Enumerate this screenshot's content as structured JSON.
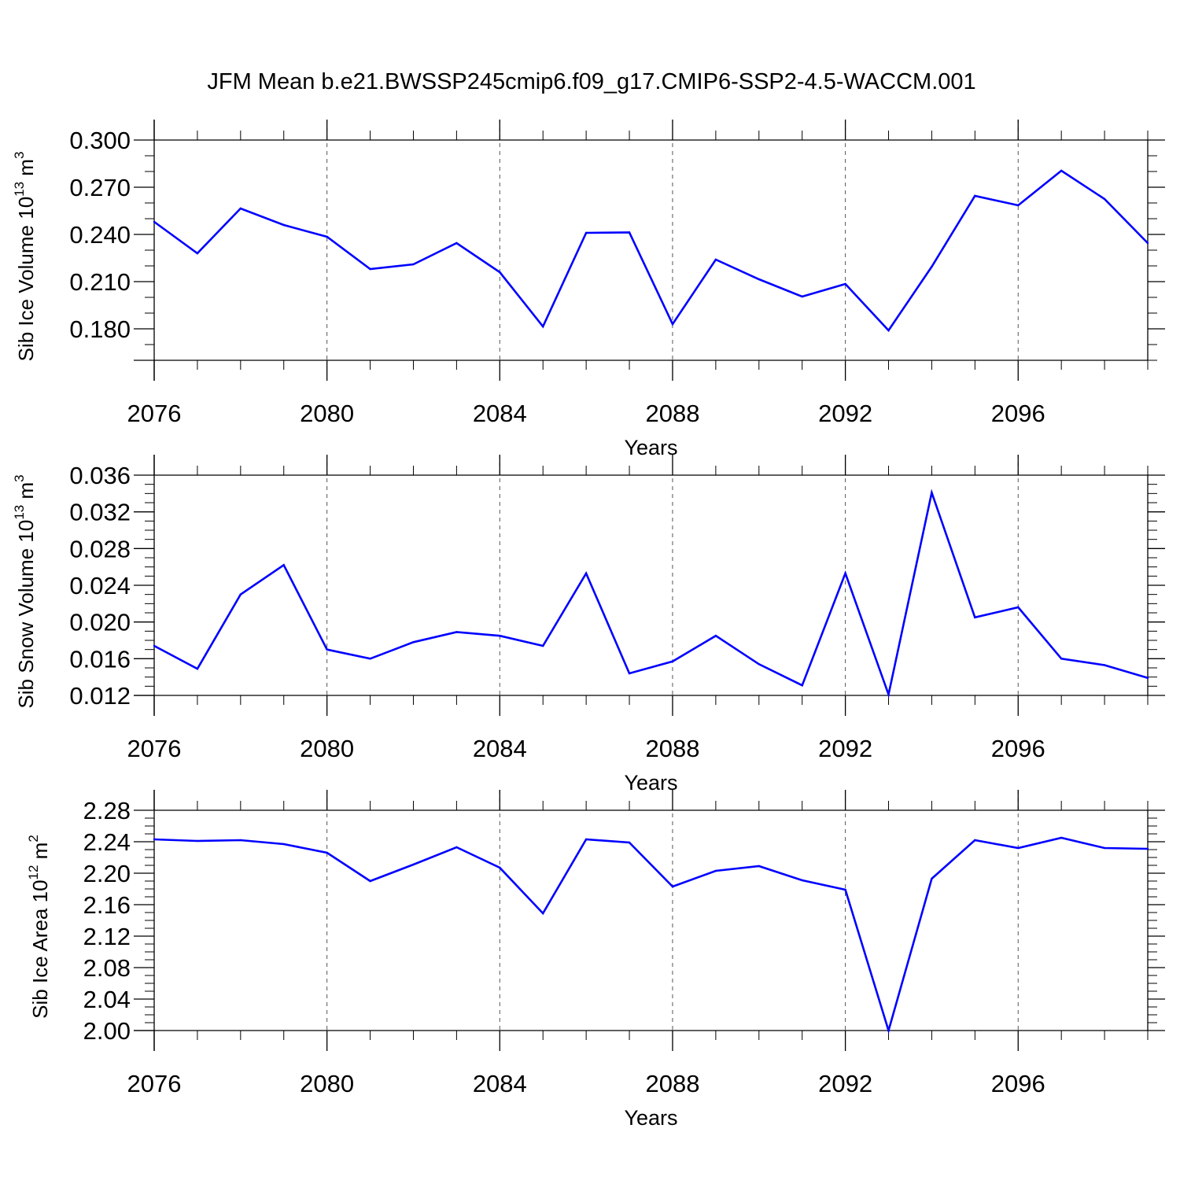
{
  "figure": {
    "title": "JFM Mean b.e21.BWSSP245cmip6.f09_g17.CMIP6-SSP2-4.5-WACCM.001"
  },
  "chart_data": [
    {
      "type": "line",
      "ylabel": "Sib Ice Volume 10",
      "ylabel_sup1": "13",
      "ylabel_mid": " m",
      "ylabel_sup2": "3",
      "xlabel": "Years",
      "xlim": [
        2076,
        2099
      ],
      "ylim": [
        0.16,
        0.3
      ],
      "x_ticks": [
        2076,
        2080,
        2084,
        2088,
        2092,
        2096
      ],
      "x_tick_labels": [
        "2076",
        "2080",
        "2084",
        "2088",
        "2092",
        "2096"
      ],
      "y_ticks": [
        0.18,
        0.21,
        0.24,
        0.27,
        0.3
      ],
      "y_tick_labels": [
        "0.180",
        "0.210",
        "0.240",
        "0.270",
        "0.300"
      ],
      "y_minor_step": 0.01,
      "grid": "vertical dashed at major x ticks",
      "line_color": "#0000ff",
      "x": [
        2076,
        2077,
        2078,
        2079,
        2080,
        2081,
        2082,
        2083,
        2084,
        2085,
        2086,
        2087,
        2088,
        2089,
        2090,
        2091,
        2092,
        2093,
        2094,
        2095,
        2096,
        2097,
        2098,
        2099
      ],
      "y": [
        0.248,
        0.228,
        0.2565,
        0.246,
        0.2385,
        0.218,
        0.221,
        0.2345,
        0.216,
        0.1815,
        0.241,
        0.2413,
        0.183,
        0.224,
        0.2115,
        0.2005,
        0.2085,
        0.179,
        0.2195,
        0.2645,
        0.2585,
        0.2805,
        0.2625,
        0.2345
      ]
    },
    {
      "type": "line",
      "ylabel": "Sib Snow Volume 10",
      "ylabel_sup1": "13",
      "ylabel_mid": " m",
      "ylabel_sup2": "3",
      "xlabel": "Years",
      "xlim": [
        2076,
        2099
      ],
      "ylim": [
        0.012,
        0.036
      ],
      "x_ticks": [
        2076,
        2080,
        2084,
        2088,
        2092,
        2096
      ],
      "x_tick_labels": [
        "2076",
        "2080",
        "2084",
        "2088",
        "2092",
        "2096"
      ],
      "y_ticks": [
        0.012,
        0.016,
        0.02,
        0.024,
        0.028,
        0.032,
        0.036
      ],
      "y_tick_labels": [
        "0.012",
        "0.016",
        "0.020",
        "0.024",
        "0.028",
        "0.032",
        "0.036"
      ],
      "y_minor_step": 0.001,
      "grid": "vertical dashed at major x ticks",
      "line_color": "#0000ff",
      "x": [
        2076,
        2077,
        2078,
        2079,
        2080,
        2081,
        2082,
        2083,
        2084,
        2085,
        2086,
        2087,
        2088,
        2089,
        2090,
        2091,
        2092,
        2093,
        2094,
        2095,
        2096,
        2097,
        2098,
        2099
      ],
      "y": [
        0.0174,
        0.0149,
        0.023,
        0.0262,
        0.017,
        0.016,
        0.0178,
        0.0189,
        0.0185,
        0.0174,
        0.0253,
        0.0144,
        0.0157,
        0.0185,
        0.0154,
        0.0131,
        0.0253,
        0.0121,
        0.0341,
        0.0205,
        0.0216,
        0.016,
        0.0153,
        0.0139
      ]
    },
    {
      "type": "line",
      "ylabel": "Sib Ice Area 10",
      "ylabel_sup1": "12",
      "ylabel_mid": " m",
      "ylabel_sup2": "2",
      "xlabel": "Years",
      "xlim": [
        2076,
        2099
      ],
      "ylim": [
        2.0,
        2.28
      ],
      "x_ticks": [
        2076,
        2080,
        2084,
        2088,
        2092,
        2096
      ],
      "x_tick_labels": [
        "2076",
        "2080",
        "2084",
        "2088",
        "2092",
        "2096"
      ],
      "y_ticks": [
        2.0,
        2.04,
        2.08,
        2.12,
        2.16,
        2.2,
        2.24,
        2.28
      ],
      "y_tick_labels": [
        "2.00",
        "2.04",
        "2.08",
        "2.12",
        "2.16",
        "2.20",
        "2.24",
        "2.28"
      ],
      "y_minor_step": 0.01,
      "grid": "vertical dashed at major x ticks",
      "line_color": "#0000ff",
      "x": [
        2076,
        2077,
        2078,
        2079,
        2080,
        2081,
        2082,
        2083,
        2084,
        2085,
        2086,
        2087,
        2088,
        2089,
        2090,
        2091,
        2092,
        2093,
        2094,
        2095,
        2096,
        2097,
        2098,
        2099
      ],
      "y": [
        2.243,
        2.241,
        2.242,
        2.237,
        2.226,
        2.19,
        2.211,
        2.233,
        2.207,
        2.149,
        2.243,
        2.239,
        2.183,
        2.203,
        2.209,
        2.191,
        2.179,
        2.0,
        2.193,
        2.242,
        2.232,
        2.245,
        2.232,
        2.231
      ]
    }
  ]
}
